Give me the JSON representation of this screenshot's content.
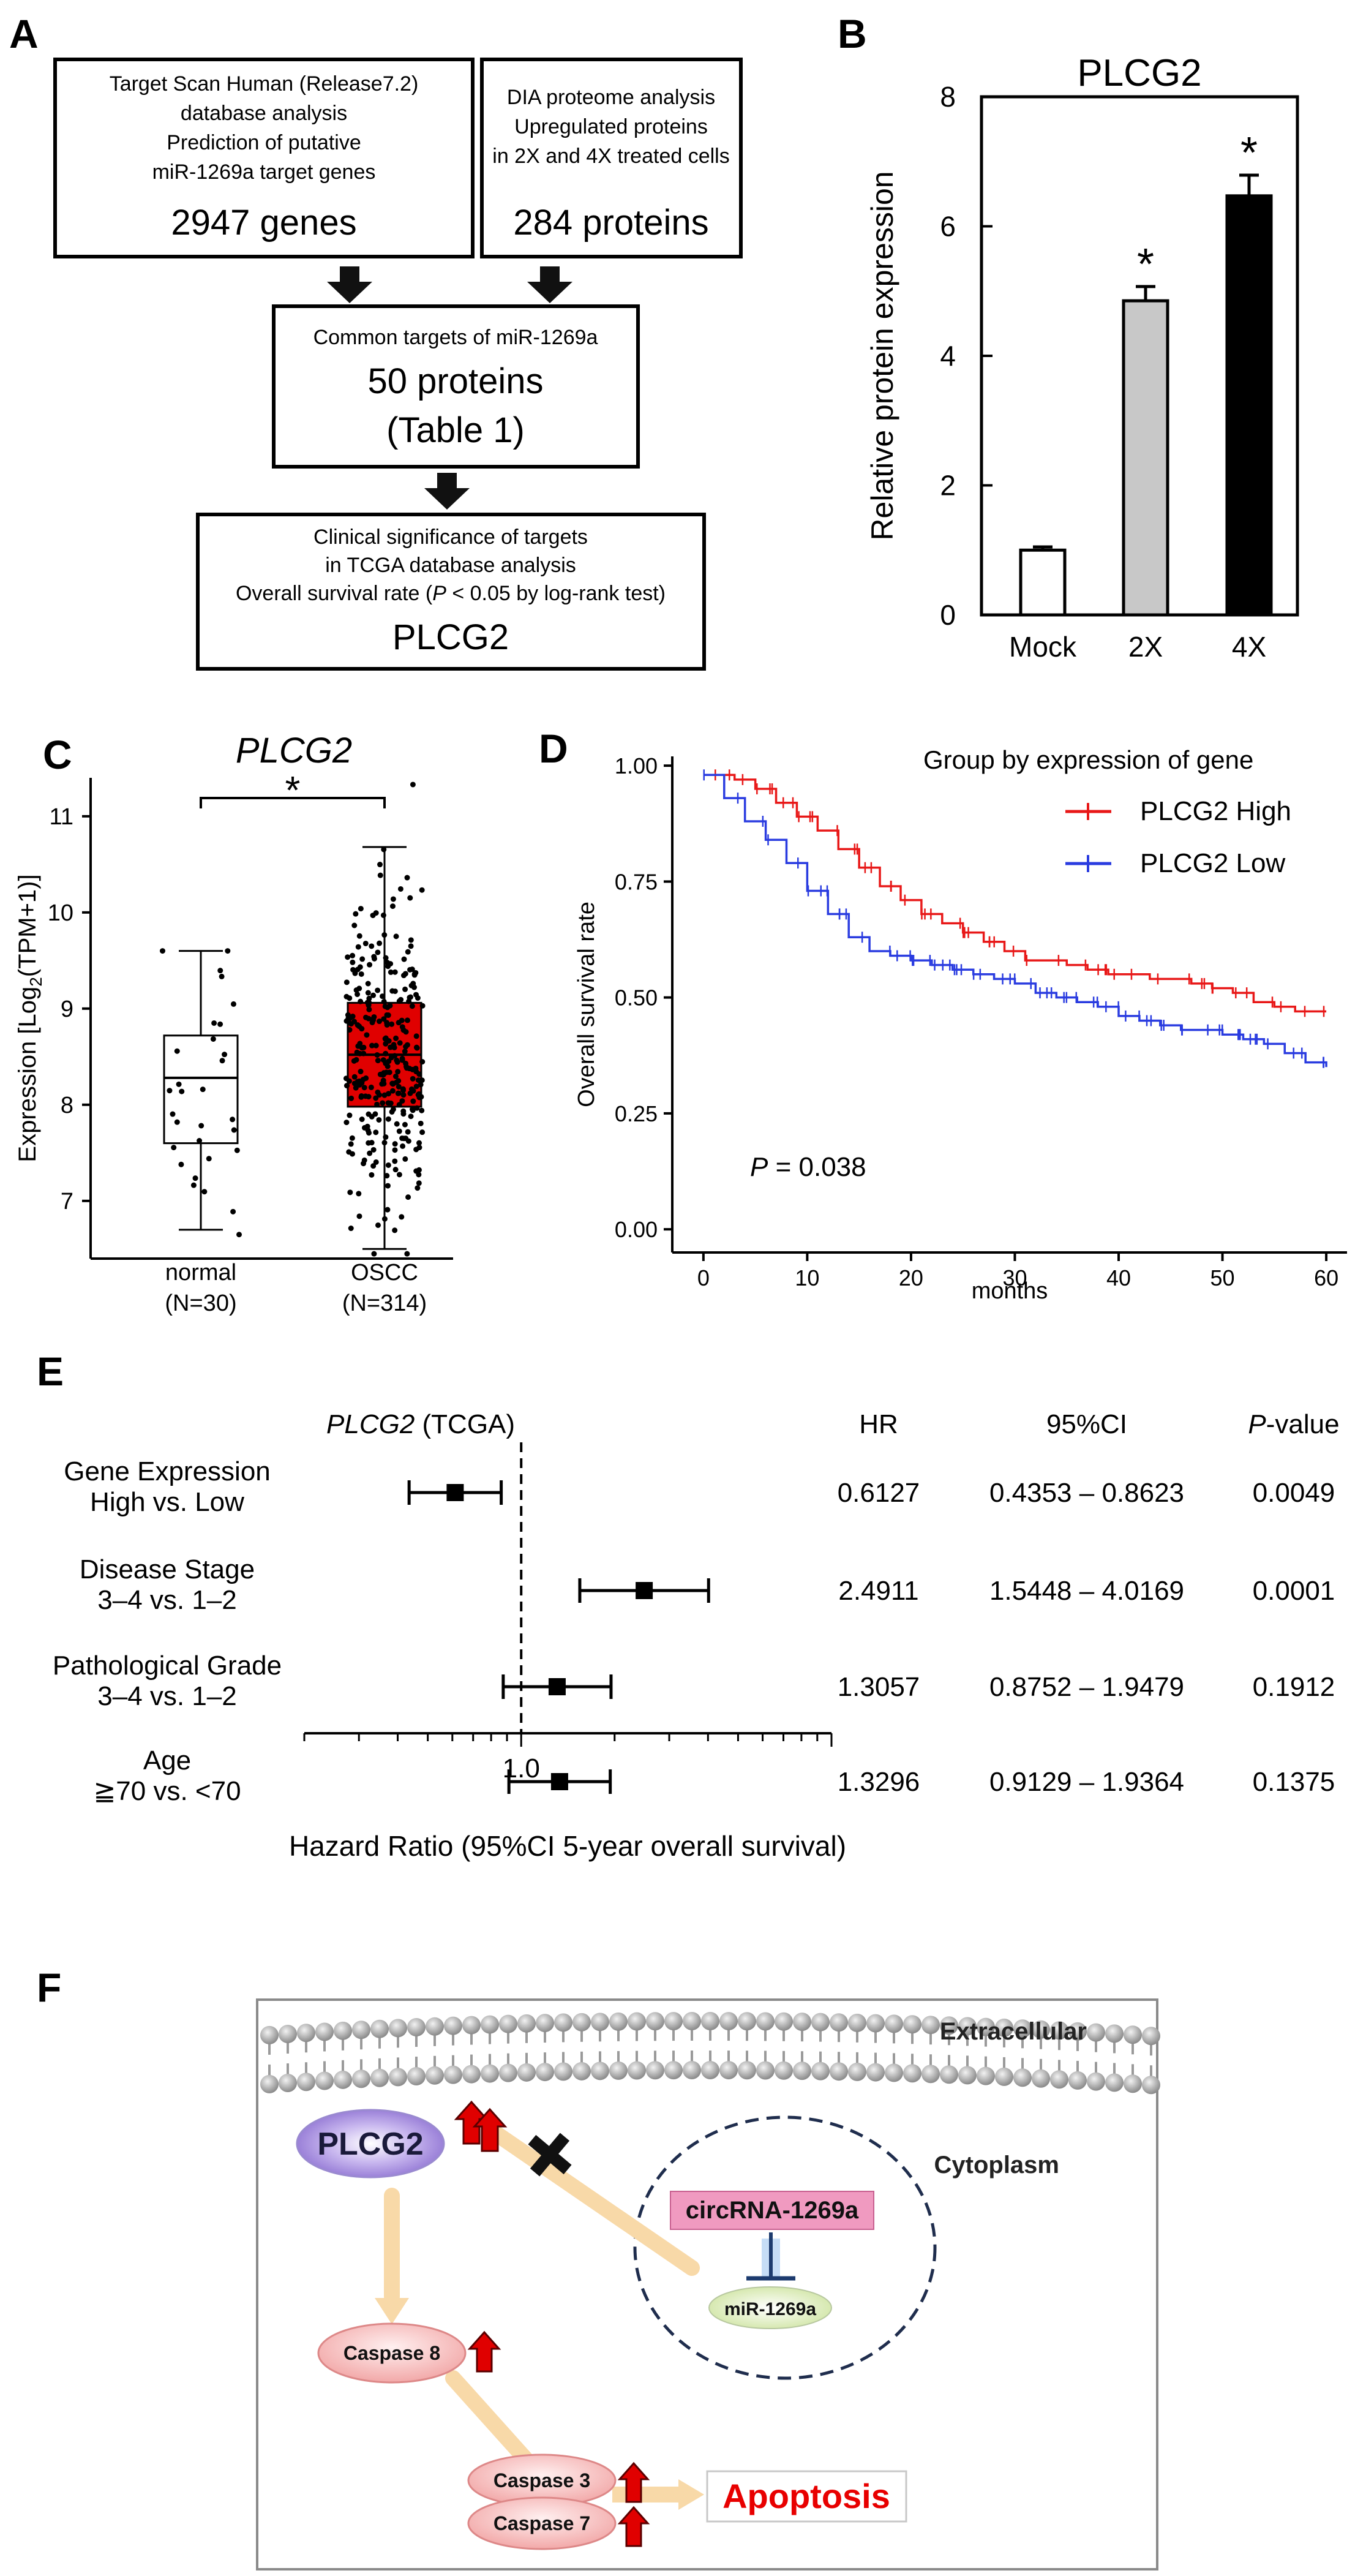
{
  "panel_labels": {
    "a": "A",
    "b": "B",
    "c": "C",
    "d": "D",
    "e": "E",
    "f": "F"
  },
  "panel_a": {
    "box1": {
      "line1": "Target Scan Human (Release7.2)",
      "line2": "database analysis",
      "line3": "Prediction of putative",
      "line4": "miR-1269a target genes",
      "count": "2947 genes"
    },
    "box2": {
      "line1": "DIA proteome analysis",
      "line2": "Upregulated proteins",
      "line3": "in 2X and 4X treated cells",
      "count": "284 proteins"
    },
    "box3": {
      "line1": "Common targets of miR-1269a",
      "count": "50 proteins",
      "note": "(Table 1)"
    },
    "box4": {
      "line1": "Clinical significance of targets",
      "line2": "in TCGA database analysis",
      "line3_pre": "Overall survival rate (",
      "line3_p": "P",
      "line3_post": " < 0.05 by log-rank test)",
      "result": "PLCG2"
    }
  },
  "chart_data": [
    {
      "id": "B",
      "type": "bar",
      "title": "PLCG2",
      "categories": [
        "Mock",
        "2X",
        "4X"
      ],
      "values": [
        1.0,
        4.85,
        6.47
      ],
      "errors": [
        0.05,
        0.22,
        0.32
      ],
      "fills": [
        "#ffffff",
        "#c8c8c8",
        "#000000"
      ],
      "significance": [
        "",
        "*",
        "*"
      ],
      "ylabel": "Relative protein expression",
      "ylim": [
        0,
        8
      ],
      "yticks": [
        0,
        2,
        4,
        6,
        8
      ]
    },
    {
      "id": "C",
      "type": "box",
      "title": "PLCG2",
      "ylabel_pre": "Expression [Log",
      "ylabel_sub": "2",
      "ylabel_post": "(TPM+1)]",
      "ylim": [
        6.4,
        11.4
      ],
      "yticks": [
        7,
        8,
        9,
        10,
        11
      ],
      "significance": "*",
      "groups": [
        {
          "name": "normal",
          "n": "(N=30)",
          "color": "#ffffff",
          "min": 6.7,
          "q1": 7.6,
          "median": 8.28,
          "q3": 8.72,
          "max": 9.6,
          "n_points": 30
        },
        {
          "name": "OSCC",
          "n": "(N=314)",
          "color": "#e00000",
          "min": 6.5,
          "q1": 7.98,
          "median": 8.52,
          "q3": 9.06,
          "max": 10.68,
          "n_points": 314
        }
      ]
    },
    {
      "id": "D",
      "type": "line",
      "xlabel": "months",
      "ylabel": "Overall survival rate",
      "xlim": [
        -3,
        62
      ],
      "ylim": [
        -0.05,
        1.02
      ],
      "xticks": [
        0,
        10,
        20,
        30,
        40,
        50,
        60
      ],
      "yticks": [
        0.0,
        0.25,
        0.5,
        0.75,
        1.0
      ],
      "ytick_labels": [
        "0.00",
        "0.25",
        "0.50",
        "0.75",
        "1.00"
      ],
      "legend_title": "Group by expression of gene",
      "p_label": "P",
      "p_value": " = 0.038",
      "series": [
        {
          "name": "PLCG2 High",
          "color": "#e81818",
          "x": [
            0,
            3,
            5,
            7,
            9,
            11,
            13,
            15,
            17,
            19,
            21,
            23,
            25,
            27,
            29,
            31,
            33,
            35,
            37,
            39,
            41,
            43,
            45,
            47,
            49,
            51,
            53,
            55,
            57,
            60
          ],
          "y": [
            0.98,
            0.97,
            0.95,
            0.92,
            0.89,
            0.86,
            0.82,
            0.78,
            0.74,
            0.71,
            0.68,
            0.66,
            0.64,
            0.62,
            0.6,
            0.58,
            0.58,
            0.57,
            0.56,
            0.55,
            0.55,
            0.54,
            0.54,
            0.53,
            0.52,
            0.51,
            0.49,
            0.48,
            0.47,
            0.47
          ]
        },
        {
          "name": "PLCG2 Low",
          "color": "#2a3ce0",
          "x": [
            0,
            2,
            4,
            6,
            8,
            10,
            12,
            14,
            16,
            18,
            20,
            22,
            24,
            26,
            28,
            30,
            32,
            34,
            36,
            38,
            40,
            42,
            44,
            46,
            48,
            50,
            52,
            54,
            56,
            58,
            60
          ],
          "y": [
            0.98,
            0.93,
            0.88,
            0.84,
            0.79,
            0.73,
            0.68,
            0.63,
            0.6,
            0.59,
            0.58,
            0.57,
            0.56,
            0.55,
            0.54,
            0.53,
            0.51,
            0.5,
            0.49,
            0.48,
            0.46,
            0.45,
            0.44,
            0.43,
            0.43,
            0.42,
            0.41,
            0.4,
            0.38,
            0.36,
            0.35
          ]
        }
      ]
    },
    {
      "id": "E",
      "type": "forest",
      "title_italic": "PLCG2",
      "title_rest": " (TCGA)",
      "xlabel": "Hazard Ratio (95%CI 5-year overall survival)",
      "ref_label": "1.0",
      "ref_value": 1.0,
      "xlim": [
        0.2,
        10
      ],
      "col_headers": {
        "hr": "HR",
        "ci": "95%CI",
        "p_italic": "P",
        "p_rest": "-value"
      },
      "rows": [
        {
          "label1": "Gene Expression",
          "label2": "High vs. Low",
          "hr": 0.6127,
          "lo": 0.4353,
          "hi": 0.8623,
          "hr_text": "0.6127",
          "ci_text": "0.4353 – 0.8623",
          "p_text": "0.0049"
        },
        {
          "label1": "Disease Stage",
          "label2": "3–4 vs. 1–2",
          "hr": 2.4911,
          "lo": 1.5448,
          "hi": 4.0169,
          "hr_text": "2.4911",
          "ci_text": "1.5448 – 4.0169",
          "p_text": "0.0001"
        },
        {
          "label1": "Pathological Grade",
          "label2": "3–4 vs. 1–2",
          "hr": 1.3057,
          "lo": 0.8752,
          "hi": 1.9479,
          "hr_text": "1.3057",
          "ci_text": "0.8752 – 1.9479",
          "p_text": "0.1912"
        },
        {
          "label1": "Age",
          "label2": "≧70 vs. <70",
          "hr": 1.3296,
          "lo": 0.9129,
          "hi": 1.9364,
          "hr_text": "1.3296",
          "ci_text": "0.9129 – 1.9364",
          "p_text": "0.1375"
        }
      ]
    }
  ],
  "panel_f": {
    "extracellular": "Extracellular",
    "cytoplasm": "Cytoplasm",
    "plcg2": "PLCG2",
    "circrna": "circRNA-1269a",
    "mirna": "miR-1269a",
    "caspase8": "Caspase 8",
    "caspase3": "Caspase 3",
    "caspase7": "Caspase 7",
    "apoptosis": "Apoptosis",
    "colors": {
      "plcg2": "#b9a6e6",
      "circrna": "#f09ac0",
      "mirna": "#e4f0c4",
      "caspase": "#f8c6c6",
      "arrow": "#f8d9a8",
      "apoptosis": "#e80000",
      "up_arrow": "#e00000"
    }
  }
}
